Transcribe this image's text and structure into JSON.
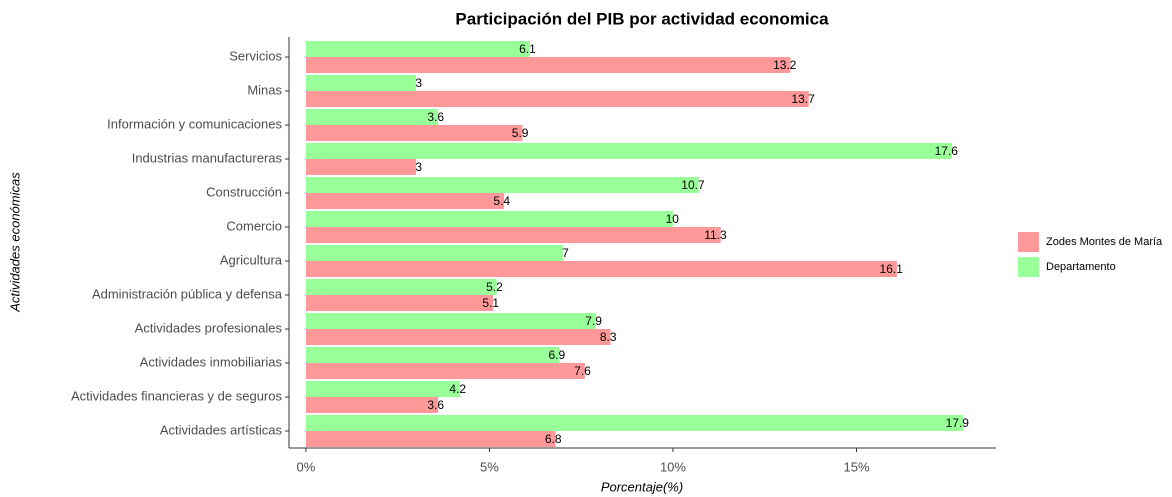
{
  "chart_data": {
    "type": "bar",
    "orientation": "horizontal",
    "title": "Participación del PIB por actividad economica",
    "xlabel": "Porcentaje(%)",
    "ylabel": "Actividades económicas",
    "categories": [
      "Servicios",
      "Minas",
      "Información y comunicaciones",
      "Industrias manufactureras",
      "Construcción",
      "Comercio",
      "Agricultura",
      "Administración pública y defensa",
      "Actividades profesionales",
      "Actividades inmobiliarias",
      "Actividades financieras y de seguros",
      "Actividades artísticas"
    ],
    "series": [
      {
        "name": "Zodes Montes de María",
        "color": "#ff9999",
        "values": [
          13.2,
          13.7,
          5.9,
          3,
          5.4,
          11.3,
          16.1,
          5.1,
          8.3,
          7.6,
          3.6,
          6.8
        ]
      },
      {
        "name": "Departamento",
        "color": "#99ff99",
        "values": [
          6.1,
          3,
          3.6,
          17.6,
          10.7,
          10,
          7,
          5.2,
          7.9,
          6.9,
          4.2,
          17.9
        ]
      }
    ],
    "xlim": [
      -0.46,
      18.8
    ],
    "xticks": [
      {
        "value": 0,
        "label": "0%"
      },
      {
        "value": 5,
        "label": "5%"
      },
      {
        "value": 10,
        "label": "10%"
      },
      {
        "value": 15,
        "label": "15%"
      }
    ],
    "legend": "right"
  }
}
